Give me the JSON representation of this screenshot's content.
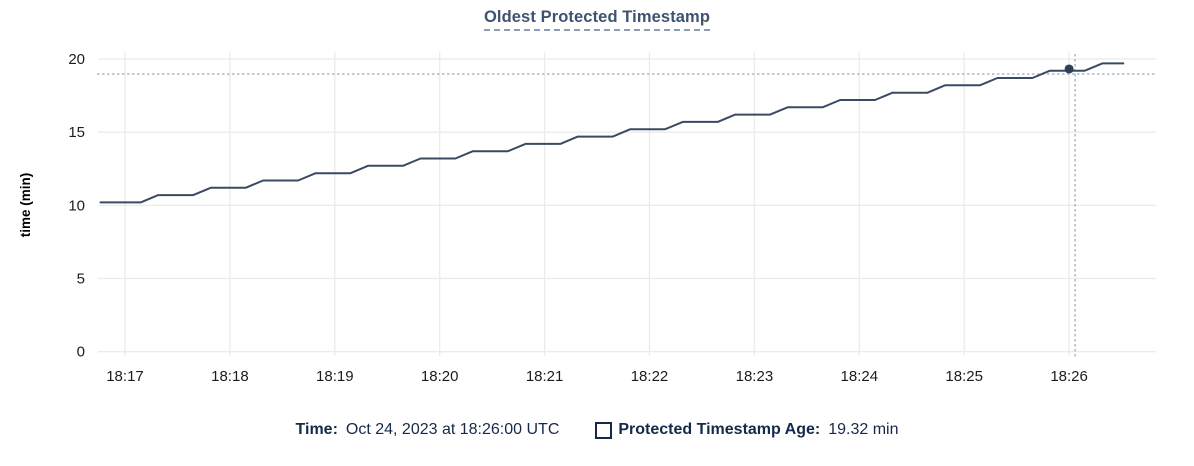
{
  "header": {
    "title": "Oldest Protected Timestamp"
  },
  "footer": {
    "time_label": "Time:",
    "time_value": "Oct 24, 2023 at 18:26:00 UTC",
    "series_label": "Protected Timestamp Age:",
    "series_value": "19.32 min",
    "swatch_icon": "hollow-square-swatch"
  },
  "colors": {
    "title": "#3e5371",
    "legend_text": "#15294a",
    "line": "#394b63",
    "marker": "#2c3e58",
    "crosshair": "#a9bac6",
    "grid": "#ebebeb",
    "tick_text": "#1c1c1c",
    "axis_label": "#000000",
    "background": "#ffffff"
  },
  "chart_data": {
    "type": "line",
    "title": "Oldest Protected Timestamp",
    "xlabel": "",
    "ylabel": "time (min)",
    "ylim": [
      0,
      20
    ],
    "yticks": [
      0,
      5,
      10,
      15,
      20
    ],
    "xticks": [
      "18:17",
      "18:18",
      "18:19",
      "18:20",
      "18:21",
      "18:22",
      "18:23",
      "18:24",
      "18:25",
      "18:26"
    ],
    "x_time_origin": "18:17:00",
    "grid": true,
    "legend_position": "bottom",
    "series": [
      {
        "name": "Protected Timestamp Age",
        "unit": "min",
        "points_t_seconds_vs_min": [
          [
            -14,
            10.2
          ],
          [
            9,
            10.2
          ],
          [
            19,
            10.7
          ],
          [
            39,
            10.7
          ],
          [
            49,
            11.2
          ],
          [
            69,
            11.2
          ],
          [
            79,
            11.7
          ],
          [
            99,
            11.7
          ],
          [
            109,
            12.2
          ],
          [
            129,
            12.2
          ],
          [
            139,
            12.7
          ],
          [
            159,
            12.7
          ],
          [
            169,
            13.2
          ],
          [
            189,
            13.2
          ],
          [
            199,
            13.7
          ],
          [
            219,
            13.7
          ],
          [
            229,
            14.2
          ],
          [
            249,
            14.2
          ],
          [
            259,
            14.7
          ],
          [
            279,
            14.7
          ],
          [
            289,
            15.2
          ],
          [
            309,
            15.2
          ],
          [
            319,
            15.7
          ],
          [
            339,
            15.7
          ],
          [
            349,
            16.2
          ],
          [
            369,
            16.2
          ],
          [
            379,
            16.7
          ],
          [
            399,
            16.7
          ],
          [
            409,
            17.2
          ],
          [
            429,
            17.2
          ],
          [
            439,
            17.7
          ],
          [
            459,
            17.7
          ],
          [
            469,
            18.2
          ],
          [
            489,
            18.2
          ],
          [
            499,
            18.7
          ],
          [
            519,
            18.7
          ],
          [
            529,
            19.2
          ],
          [
            549,
            19.2
          ],
          [
            559,
            19.7
          ],
          [
            571,
            19.7
          ]
        ]
      }
    ],
    "marker": {
      "time": "18:26:00",
      "t_seconds": 540,
      "value": 19.32
    },
    "crosshair": true
  }
}
